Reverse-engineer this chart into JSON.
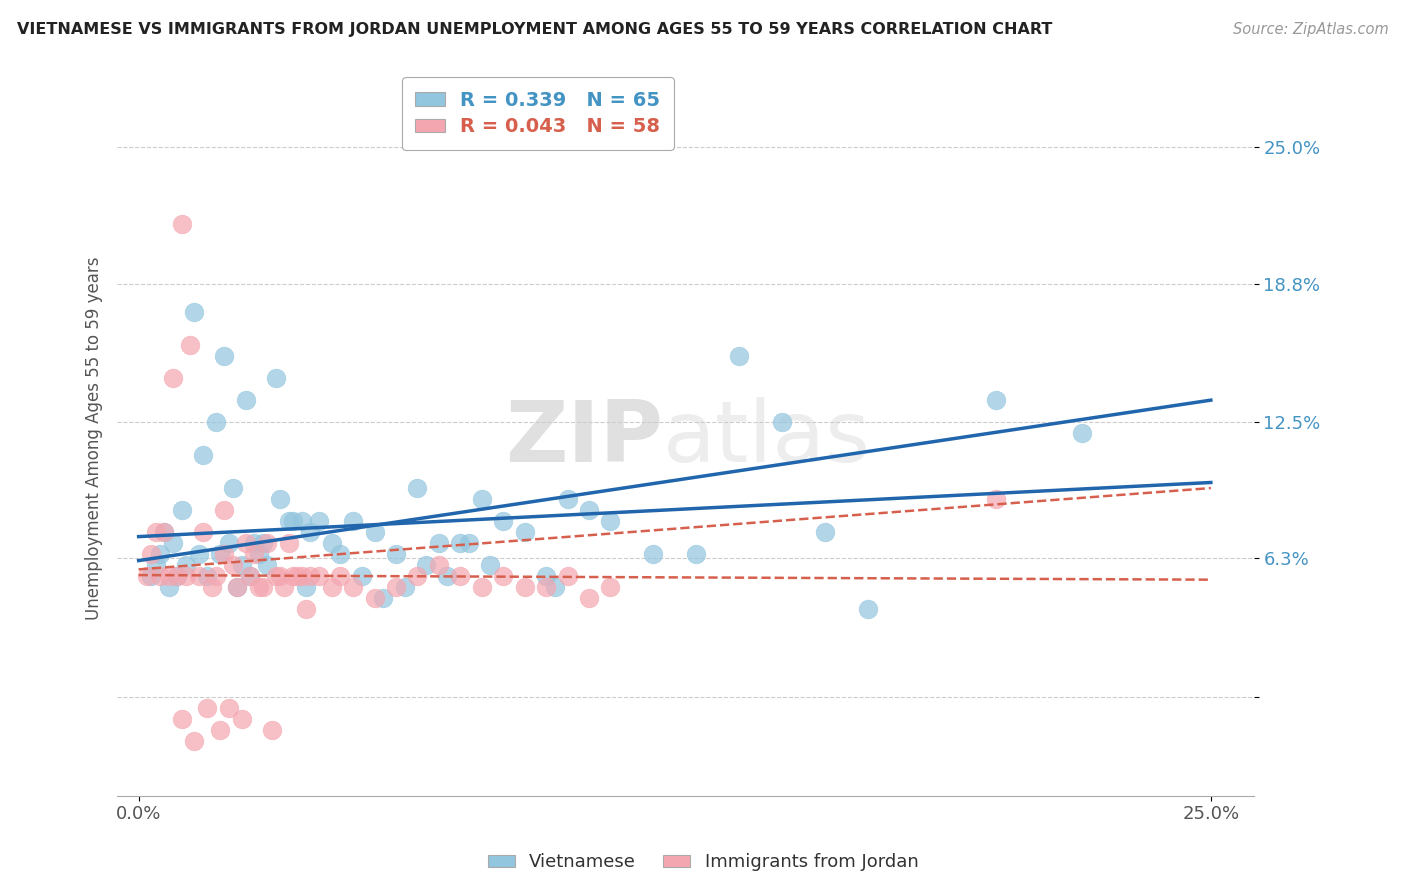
{
  "title": "VIETNAMESE VS IMMIGRANTS FROM JORDAN UNEMPLOYMENT AMONG AGES 55 TO 59 YEARS CORRELATION CHART",
  "source": "Source: ZipAtlas.com",
  "ylabel": "Unemployment Among Ages 55 to 59 years",
  "xlim": [
    0.0,
    25.0
  ],
  "ylim": [
    -4.0,
    27.0
  ],
  "ytick_positions": [
    0.0,
    6.3,
    12.5,
    18.8,
    25.0
  ],
  "ytick_labels": [
    "",
    "6.3%",
    "12.5%",
    "18.8%",
    "25.0%"
  ],
  "xtick_positions": [
    0.0,
    25.0
  ],
  "xtick_labels": [
    "0.0%",
    "25.0%"
  ],
  "vietnamese_color": "#92c5de",
  "jordan_color": "#f4a6b0",
  "regression_blue": "#2166ac",
  "regression_pink": "#d6604d",
  "watermark_text": "ZIPatlas",
  "legend_bottom_labels": [
    "Vietnamese",
    "Immigrants from Jordan"
  ],
  "viet_R": "0.339",
  "viet_N": "65",
  "jord_R": "0.043",
  "jord_N": "58",
  "vietnamese_x": [
    1.3,
    2.0,
    2.5,
    3.2,
    1.5,
    1.8,
    2.2,
    1.0,
    0.8,
    0.5,
    0.4,
    0.3,
    0.6,
    0.7,
    0.9,
    1.1,
    1.4,
    1.6,
    1.9,
    2.1,
    2.3,
    2.6,
    2.8,
    3.0,
    3.5,
    4.0,
    4.5,
    5.0,
    5.5,
    6.0,
    6.5,
    7.0,
    7.5,
    8.0,
    8.5,
    9.0,
    9.5,
    10.0,
    10.5,
    11.0,
    12.0,
    13.0,
    14.0,
    15.0,
    16.0,
    3.8,
    4.2,
    2.4,
    2.7,
    2.9,
    3.3,
    3.6,
    3.9,
    4.7,
    5.2,
    5.7,
    6.2,
    6.7,
    7.2,
    7.7,
    8.2,
    9.7,
    17.0,
    20.0,
    22.0
  ],
  "vietnamese_y": [
    17.5,
    15.5,
    13.5,
    14.5,
    11.0,
    12.5,
    9.5,
    8.5,
    7.0,
    6.5,
    6.0,
    5.5,
    7.5,
    5.0,
    5.5,
    6.0,
    6.5,
    5.5,
    6.5,
    7.0,
    5.0,
    5.5,
    6.5,
    6.0,
    8.0,
    7.5,
    7.0,
    8.0,
    7.5,
    6.5,
    9.5,
    7.0,
    7.0,
    9.0,
    8.0,
    7.5,
    5.5,
    9.0,
    8.5,
    8.0,
    6.5,
    6.5,
    15.5,
    12.5,
    7.5,
    8.0,
    8.0,
    6.0,
    7.0,
    7.0,
    9.0,
    8.0,
    5.0,
    6.5,
    5.5,
    4.5,
    5.0,
    6.0,
    5.5,
    7.0,
    6.0,
    5.0,
    4.0,
    13.5,
    12.0
  ],
  "jordan_x": [
    0.2,
    0.3,
    0.4,
    0.5,
    0.6,
    0.7,
    0.8,
    0.9,
    1.0,
    1.1,
    1.2,
    1.3,
    1.4,
    1.5,
    1.6,
    1.7,
    1.8,
    1.9,
    2.0,
    2.1,
    2.2,
    2.3,
    2.4,
    2.5,
    2.6,
    2.7,
    2.8,
    2.9,
    3.0,
    3.1,
    3.2,
    3.3,
    3.4,
    3.5,
    3.6,
    3.7,
    3.8,
    3.9,
    4.0,
    4.2,
    4.5,
    4.7,
    5.0,
    5.5,
    6.0,
    6.5,
    7.0,
    7.5,
    8.0,
    8.5,
    9.0,
    9.5,
    10.0,
    10.5,
    11.0,
    20.0,
    1.0,
    2.0
  ],
  "jordan_y": [
    5.5,
    6.5,
    7.5,
    5.5,
    7.5,
    5.5,
    14.5,
    5.5,
    -1.0,
    5.5,
    16.0,
    -2.0,
    5.5,
    7.5,
    -0.5,
    5.0,
    5.5,
    -1.5,
    8.5,
    -0.5,
    6.0,
    5.0,
    -1.0,
    7.0,
    5.5,
    6.5,
    5.0,
    5.0,
    7.0,
    -1.5,
    5.5,
    5.5,
    5.0,
    7.0,
    5.5,
    5.5,
    5.5,
    4.0,
    5.5,
    5.5,
    5.0,
    5.5,
    5.0,
    4.5,
    5.0,
    5.5,
    6.0,
    5.5,
    5.0,
    5.5,
    5.0,
    5.0,
    5.5,
    4.5,
    5.0,
    9.0,
    21.5,
    6.5
  ]
}
